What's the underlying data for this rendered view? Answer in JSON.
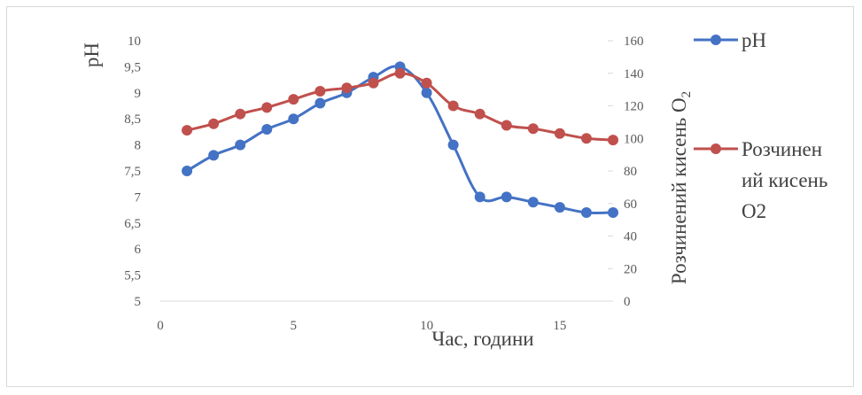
{
  "chart_data": {
    "type": "line",
    "title": "",
    "xlabel": "Час, години",
    "ylabel_left": "pH",
    "ylabel_right_prefix": "Розчинений кисень O",
    "ylabel_right_sub": "2",
    "xlim": [
      0,
      17
    ],
    "xticks": [
      0,
      5,
      10,
      15
    ],
    "ylim_left": [
      5,
      10
    ],
    "yticks_left": [
      "5",
      "5,5",
      "6",
      "6,5",
      "7",
      "7,5",
      "8",
      "8,5",
      "9",
      "9,5",
      "10"
    ],
    "ylim_right": [
      0,
      160
    ],
    "yticks_right": [
      "0",
      "20",
      "40",
      "60",
      "80",
      "100",
      "120",
      "140",
      "160"
    ],
    "grid": false,
    "legend_placement": "right",
    "series": [
      {
        "name": "pH",
        "legend_lines": [
          "pH"
        ],
        "axis": "left",
        "color": "#4472c4",
        "x": [
          1,
          2,
          3,
          4,
          5,
          6,
          7,
          8,
          9,
          10,
          11,
          12,
          13,
          14,
          15,
          16,
          17
        ],
        "y": [
          7.5,
          7.8,
          8.0,
          8.3,
          8.5,
          8.8,
          9.0,
          9.3,
          9.5,
          9.0,
          8.0,
          7.0,
          7.0,
          6.9,
          6.8,
          6.7,
          6.7
        ]
      },
      {
        "name": "Розчинений кисень O2",
        "legend_lines": [
          "Розчинен",
          "ий кисень",
          "O2"
        ],
        "axis": "right",
        "color": "#c0504d",
        "x": [
          1,
          2,
          3,
          4,
          5,
          6,
          7,
          8,
          9,
          10,
          11,
          12,
          13,
          14,
          15,
          16,
          17
        ],
        "y": [
          105,
          109,
          115,
          119,
          124,
          129,
          131,
          134,
          140,
          134,
          120,
          115,
          108,
          106,
          103,
          100,
          99
        ]
      }
    ]
  }
}
